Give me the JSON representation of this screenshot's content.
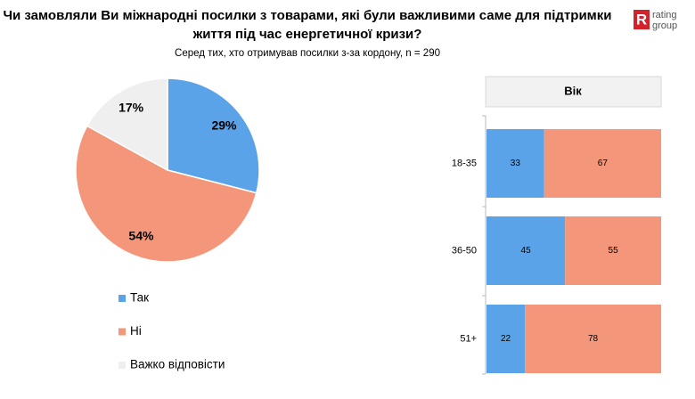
{
  "header": {
    "title": [
      "Чи замовляли Ви міжнародні посилки з товарами, які були важливими саме для підтримки",
      "життя під час енергетичної кризи?"
    ],
    "subtitle": "Серед тих, хто отримував посилки з-за кордону, n = 290",
    "logo": {
      "mark": "R",
      "line1": "rating",
      "line2": "group"
    }
  },
  "chart_data": [
    {
      "type": "pie",
      "categories": [
        "Так",
        "Ні",
        "Важко відповісти"
      ],
      "values": [
        29,
        54,
        17
      ],
      "value_labels": [
        "29%",
        "54%",
        "17%"
      ],
      "colors": [
        "#5ba3e8",
        "#f4967a",
        "#efefef"
      ]
    },
    {
      "type": "bar",
      "orientation": "horizontal",
      "stacked": true,
      "title": "Вік",
      "categories": [
        "18-35",
        "36-50",
        "51+"
      ],
      "xlim": [
        0,
        100
      ],
      "series": [
        {
          "color": "#5ba3e8",
          "values": [
            33,
            45,
            22
          ]
        },
        {
          "color": "#f4967a",
          "values": [
            67,
            55,
            78
          ]
        }
      ]
    }
  ]
}
